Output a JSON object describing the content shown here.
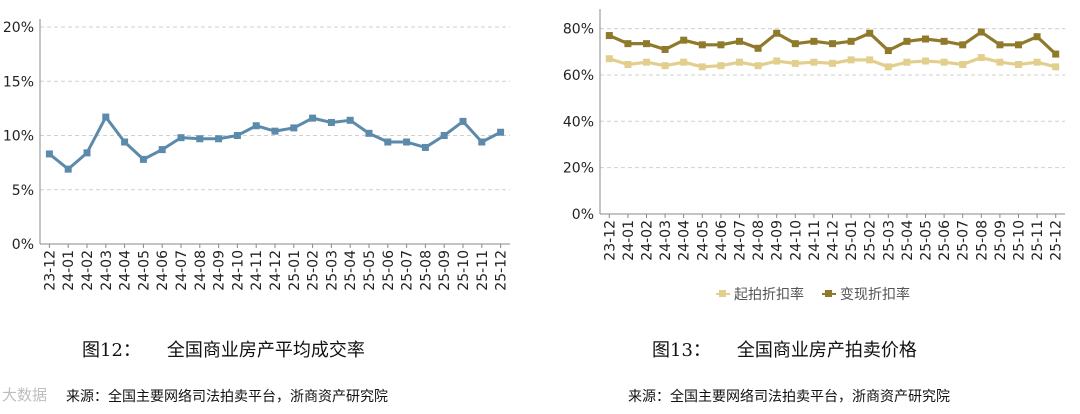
{
  "charts": {
    "left": {
      "fig_num": "图12：",
      "fig_title": "全国商业房产平均成交率",
      "source": "来源：全国主要网络司法拍卖平台，浙商资产研究院"
    },
    "right": {
      "fig_num": "图13：",
      "fig_title": "全国商业房产拍卖价格",
      "source": "来源：全国主要网络司法拍卖平台，浙商资产研究院"
    }
  },
  "watermark": "大数据",
  "chart_data": [
    {
      "type": "line",
      "title": "全国商业房产平均成交率",
      "categories": [
        "23-12",
        "24-01",
        "24-02",
        "24-03",
        "24-04",
        "24-05",
        "24-06",
        "24-07",
        "24-08",
        "24-09",
        "24-10",
        "24-11",
        "24-12",
        "25-01",
        "25-02",
        "25-03",
        "25-04",
        "25-05",
        "25-06",
        "25-07",
        "25-08",
        "25-09",
        "25-10",
        "25-11",
        "25-12"
      ],
      "yticks": [
        "0%",
        "5%",
        "10%",
        "15%",
        "20%"
      ],
      "ylim": [
        0,
        20
      ],
      "grid": true,
      "series": [
        {
          "color": "#5b8aaa",
          "values": [
            8.3,
            6.9,
            8.4,
            11.7,
            9.4,
            7.8,
            8.7,
            9.8,
            9.7,
            9.7,
            10.0,
            10.9,
            10.4,
            10.7,
            11.6,
            11.2,
            11.4,
            10.2,
            9.4,
            9.4,
            8.9,
            10.0,
            11.3,
            9.4,
            10.3
          ]
        }
      ]
    },
    {
      "type": "line",
      "title": "全国商业房产拍卖价格",
      "categories": [
        "23-12",
        "24-01",
        "24-02",
        "24-03",
        "24-04",
        "24-05",
        "24-06",
        "24-07",
        "24-08",
        "24-09",
        "24-10",
        "24-11",
        "24-12",
        "25-01",
        "25-02",
        "25-03",
        "25-04",
        "25-05",
        "25-06",
        "25-07",
        "25-08",
        "25-09",
        "25-10",
        "25-11",
        "25-12"
      ],
      "yticks": [
        "0%",
        "20%",
        "40%",
        "60%",
        "80%"
      ],
      "ylim": [
        0,
        85
      ],
      "grid": true,
      "legend_position": "bottom",
      "series": [
        {
          "name": "起拍折扣率",
          "color": "#e2cf8e",
          "values": [
            67,
            64.5,
            65.5,
            64,
            65.5,
            63.5,
            64,
            65.5,
            64,
            66,
            65,
            65.5,
            65,
            66.5,
            66.5,
            63.5,
            65.5,
            66,
            65.5,
            64.5,
            67.5,
            65.5,
            64.5,
            65.5,
            63.5
          ]
        },
        {
          "name": "变现折扣率",
          "color": "#8f7a2c",
          "values": [
            77,
            73.5,
            73.5,
            71,
            75,
            73,
            73,
            74.5,
            71.5,
            78,
            73.5,
            74.5,
            73.5,
            74.5,
            78,
            70.5,
            74.5,
            75.5,
            74.5,
            73,
            78.5,
            73,
            73,
            76.5,
            69
          ]
        }
      ]
    }
  ]
}
